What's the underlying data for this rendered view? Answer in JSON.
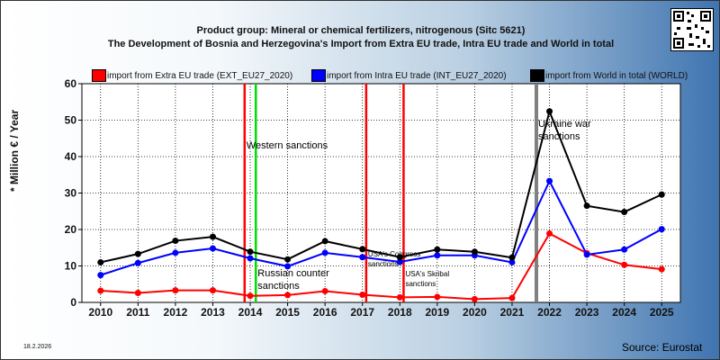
{
  "header": {
    "title_line1": "Product group: Mineral or chemical fertilizers, nitrogenous (Sitc 5621)",
    "title_line2": "The Development of Bosnia and Herzegovina's Import from Extra EU trade, Intra EU trade and World in total"
  },
  "footer": {
    "date": "18.2.2026",
    "source": "Source: Eurostat"
  },
  "icons": {
    "qr": "qr-code-icon"
  },
  "colors": {
    "extra_eu": "#ff0000",
    "intra_eu": "#0000ff",
    "world": "#000000",
    "western": "#ff0000",
    "russian": "#00dd00",
    "usa": "#ff0000",
    "ukraine": "#808080"
  },
  "chart_data": {
    "type": "line",
    "title": "",
    "ylabel": "* Million € / Year",
    "xlabel": "",
    "ylim": [
      0,
      60
    ],
    "yticks": [
      0,
      10,
      20,
      30,
      40,
      50,
      60
    ],
    "grid": true,
    "categories": [
      "2010",
      "2011",
      "2012",
      "2013",
      "2014",
      "2015",
      "2016",
      "2017",
      "2018",
      "2019",
      "2020",
      "2021",
      "2022",
      "2023",
      "2024",
      "2025"
    ],
    "series": [
      {
        "name": "import from Extra EU trade (EXT_EU27_2020)",
        "color": "#ff0000",
        "values": [
          3.2,
          2.6,
          3.3,
          3.3,
          1.8,
          2.0,
          3.1,
          2.1,
          1.4,
          1.5,
          0.9,
          1.2,
          18.9,
          13.5,
          10.3,
          9.1
        ]
      },
      {
        "name": "import from Intra EU trade (INT_EU27_2020)",
        "color": "#0000ff",
        "values": [
          7.5,
          10.8,
          13.6,
          14.8,
          12.1,
          9.9,
          13.6,
          12.4,
          11.1,
          12.9,
          12.9,
          11.0,
          33.3,
          13.1,
          14.5,
          20.1
        ]
      },
      {
        "name": "import from World in total (WORLD)",
        "color": "#000000",
        "values": [
          11.0,
          13.3,
          16.9,
          18.0,
          13.9,
          11.8,
          16.8,
          14.6,
          12.4,
          14.5,
          13.9,
          12.3,
          52.4,
          26.5,
          24.8,
          29.6
        ]
      }
    ],
    "events": [
      {
        "label": "Western sanctions",
        "year": 2013.85,
        "color": "#ff0000"
      },
      {
        "label": "Russian counter sanctions",
        "year": 2014.15,
        "color": "#00dd00"
      },
      {
        "label": "USA's Congress sanctions",
        "year": 2017.1,
        "color": "#ff0000"
      },
      {
        "label": "USA's Skribal sanctions",
        "year": 2018.1,
        "color": "#ff0000"
      },
      {
        "label": "Ukraine war sanctions",
        "year": 2021.65,
        "color": "#808080"
      }
    ]
  }
}
